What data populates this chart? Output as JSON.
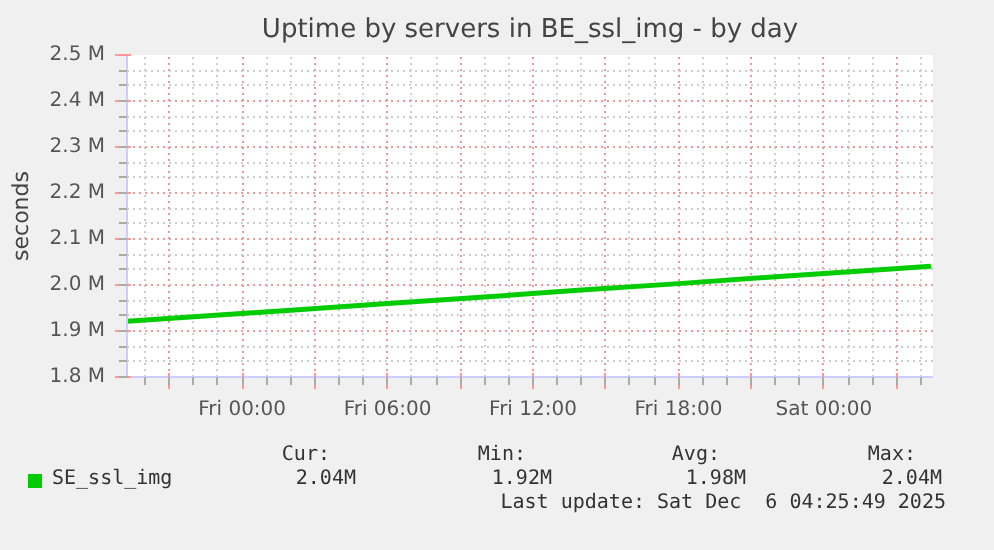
{
  "chart_data": {
    "type": "line",
    "title": "Uptime by servers in BE_ssl_img - by day",
    "ylabel": "seconds",
    "x": [
      "2025-12-04T19:15",
      "2025-12-04T22:00",
      "2025-12-05T02:00",
      "2025-12-05T06:00",
      "2025-12-05T10:00",
      "2025-12-05T14:00",
      "2025-12-05T18:00",
      "2025-12-05T22:00",
      "2025-12-06T02:00",
      "2025-12-06T04:25"
    ],
    "series": [
      {
        "name": "SE_ssl_img",
        "color": "#00cc00",
        "values": [
          1921000,
          1931000,
          1945000,
          1960000,
          1974000,
          1989000,
          2003000,
          2018000,
          2032000,
          2041000
        ]
      }
    ],
    "xlim": [
      "2025-12-04T19:15",
      "2025-12-06T04:30"
    ],
    "xticks": [
      {
        "value": "2025-12-04T21:00",
        "label": null
      },
      {
        "value": "2025-12-05T00:00",
        "label": "Fri 00:00"
      },
      {
        "value": "2025-12-05T03:00",
        "label": null
      },
      {
        "value": "2025-12-05T06:00",
        "label": "Fri 06:00"
      },
      {
        "value": "2025-12-05T09:00",
        "label": null
      },
      {
        "value": "2025-12-05T12:00",
        "label": "Fri 12:00"
      },
      {
        "value": "2025-12-05T15:00",
        "label": null
      },
      {
        "value": "2025-12-05T18:00",
        "label": "Fri 18:00"
      },
      {
        "value": "2025-12-05T21:00",
        "label": null
      },
      {
        "value": "2025-12-06T00:00",
        "label": "Sat 00:00"
      },
      {
        "value": "2025-12-06T03:00",
        "label": null
      }
    ],
    "ylim": [
      1800000,
      2500000
    ],
    "yticks": [
      {
        "value": 1800000,
        "label": "1.8 M"
      },
      {
        "value": 1900000,
        "label": "1.9 M"
      },
      {
        "value": 2000000,
        "label": "2.0 M"
      },
      {
        "value": 2100000,
        "label": "2.1 M"
      },
      {
        "value": 2200000,
        "label": "2.2 M"
      },
      {
        "value": 2300000,
        "label": "2.3 M"
      },
      {
        "value": 2400000,
        "label": "2.4 M"
      },
      {
        "value": 2500000,
        "label": "2.5 M"
      }
    ],
    "grid": true,
    "legend": "bottom",
    "marker": "none",
    "line_style": "solid",
    "annotations": [
      "Cur:",
      "Min:",
      "Avg:",
      "Max:",
      "2.04M",
      "1.92M",
      "1.98M",
      "2.04M",
      "Last update: Sat Dec  6 04:25:49 2025"
    ]
  }
}
